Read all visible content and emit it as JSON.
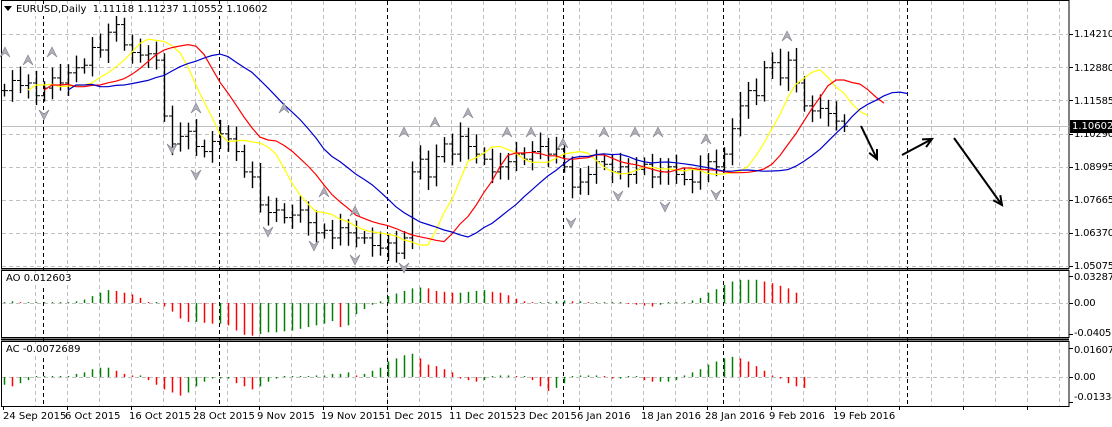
{
  "header": {
    "symbol": "EURUSD,Daily",
    "ohlc": "1.11118 1.11237 1.10552 1.10602",
    "menu_icon": "triangle-down-icon"
  },
  "price_axis": {
    "ticks": [
      "1.14210",
      "1.12880",
      "1.11585",
      "1.10290",
      "1.08995",
      "1.07665",
      "1.06370",
      "1.05075"
    ],
    "current_price": "1.10602"
  },
  "ao": {
    "label": "AO 0.012603",
    "ticks": [
      "0.032871",
      "0.00",
      "-0.0405"
    ]
  },
  "ac": {
    "label": "AC -0.0072689",
    "ticks": [
      "0.016077",
      "0.00",
      "-0.013346"
    ]
  },
  "time_axis": {
    "labels": [
      "24 Sep 2015",
      "6 Oct 2015",
      "16 Oct 2015",
      "28 Oct 2015",
      "9 Nov 2015",
      "19 Nov 2015",
      "1 Dec 2015",
      "11 Dec 2015",
      "23 Dec 2015",
      "6 Jan 2016",
      "18 Jan 2016",
      "28 Jan 2016",
      "9 Feb 2016",
      "19 Feb 2016"
    ]
  },
  "colors": {
    "ma_fast": "#ffff00",
    "ma_mid": "#ff0000",
    "ma_slow": "#0000cc",
    "up_bar": "#008000",
    "down_bar": "#ff0000",
    "grid": "#c0c0c0"
  },
  "chart_data": [
    {
      "type": "ohlc",
      "title": "EURUSD,Daily",
      "ylim": [
        1.05,
        1.151
      ],
      "y_ticks": [
        1.1421,
        1.1288,
        1.11585,
        1.1029,
        1.08995,
        1.07665,
        1.0637,
        1.05075
      ],
      "x_labels": [
        "24 Sep 2015",
        "6 Oct 2015",
        "16 Oct 2015",
        "28 Oct 2015",
        "9 Nov 2015",
        "19 Nov 2015",
        "1 Dec 2015",
        "11 Dec 2015",
        "23 Dec 2015",
        "6 Jan 2016",
        "18 Jan 2016",
        "28 Jan 2016",
        "9 Feb 2016",
        "19 Feb 2016"
      ],
      "last": {
        "open": 1.11118,
        "high": 1.11237,
        "low": 1.10552,
        "close": 1.10602
      },
      "close_series": [
        1.12,
        1.124,
        1.122,
        1.123,
        1.118,
        1.121,
        1.125,
        1.123,
        1.127,
        1.129,
        1.13,
        1.137,
        1.136,
        1.143,
        1.146,
        1.138,
        1.135,
        1.134,
        1.1345,
        1.132,
        1.11,
        1.099,
        1.102,
        1.104,
        1.098,
        1.096,
        1.1,
        1.103,
        1.101,
        1.096,
        1.088,
        1.086,
        1.075,
        1.072,
        1.073,
        1.07,
        1.071,
        1.073,
        1.068,
        1.064,
        1.065,
        1.062,
        1.066,
        1.064,
        1.062,
        1.062,
        1.059,
        1.058,
        1.06,
        1.056,
        1.062,
        1.088,
        1.093,
        1.086,
        1.094,
        1.099,
        1.095,
        1.102,
        1.098,
        1.095,
        1.093,
        1.088,
        1.09,
        1.092,
        1.095,
        1.093,
        1.096,
        1.098,
        1.095,
        1.097,
        1.09,
        1.082,
        1.084,
        1.087,
        1.092,
        1.091,
        1.088,
        1.09,
        1.087,
        1.089,
        1.091,
        1.086,
        1.088,
        1.09,
        1.087,
        1.085,
        1.084,
        1.089,
        1.092,
        1.09,
        1.095,
        1.105,
        1.114,
        1.12,
        1.118,
        1.129,
        1.131,
        1.125,
        1.132,
        1.123,
        1.114,
        1.112,
        1.113,
        1.111,
        1.108,
        1.106
      ],
      "annotations": [
        "down arrow",
        "up arrow",
        "down arrow (projection)"
      ],
      "indicators": [
        "MA fast (yellow)",
        "MA mid (red)",
        "MA slow (blue)",
        "Fractals"
      ]
    },
    {
      "type": "bar",
      "title": "AO 0.012603",
      "ylim": [
        -0.0405,
        0.032871
      ],
      "values": [
        0.001,
        0.002,
        0.001,
        0.001,
        0.001,
        0.001,
        0.001,
        0.001,
        0.001,
        0.002,
        0.004,
        0.008,
        0.012,
        0.015,
        0.014,
        0.012,
        0.01,
        0.006,
        0,
        0,
        -0.004,
        -0.01,
        -0.018,
        -0.022,
        -0.022,
        -0.023,
        -0.024,
        -0.024,
        -0.026,
        -0.032,
        -0.037,
        -0.038,
        -0.036,
        -0.034,
        -0.034,
        -0.033,
        -0.032,
        -0.03,
        -0.028,
        -0.026,
        -0.024,
        -0.021,
        -0.028,
        -0.026,
        -0.013,
        -0.007,
        -0.002,
        0.002,
        0.008,
        0.011,
        0.014,
        0.017,
        0.018,
        0.017,
        0.014,
        0.013,
        0.012,
        0.012,
        0.013,
        0.014,
        0.015,
        0.013,
        0.012,
        0.009,
        0.005,
        0.002,
        0.001,
        0.001,
        0.001,
        0.002,
        0.003,
        0.002,
        0.002,
        0.001,
        0.001,
        0.001,
        0.001,
        0.001,
        -0.001,
        -0.002,
        -0.003,
        -0.004,
        -0.002,
        0.001,
        0.001,
        0.001,
        0.003,
        0.006,
        0.012,
        0.016,
        0.021,
        0.025,
        0.027,
        0.027,
        0.027,
        0.025,
        0.023,
        0.02,
        0.017,
        0.012
      ]
    },
    {
      "type": "bar",
      "title": "AC -0.0072689",
      "ylim": [
        -0.013346,
        0.016077
      ],
      "values": [
        -0.005,
        -0.006,
        -0.004,
        -0.002,
        0,
        0,
        0,
        0,
        0,
        0.002,
        0.003,
        0.005,
        0.006,
        0.006,
        0.004,
        0.002,
        0.001,
        0.001,
        -0.002,
        -0.005,
        -0.008,
        -0.01,
        -0.012,
        -0.01,
        -0.006,
        -0.003,
        -0.001,
        -0.001,
        -0.001,
        -0.004,
        -0.006,
        -0.008,
        -0.006,
        -0.003,
        -0.001,
        0,
        0,
        0,
        0,
        0.001,
        0.001,
        0.002,
        0.002,
        0.003,
        0.001,
        0.002,
        0.004,
        0.006,
        0.01,
        0.012,
        0.014,
        0.015,
        0.012,
        0.008,
        0.007,
        0.005,
        0.003,
        -0.001,
        -0.002,
        -0.003,
        -0.002,
        0,
        0.001,
        0.001,
        0,
        0,
        -0.002,
        -0.006,
        -0.009,
        -0.007,
        -0.004,
        0,
        0.001,
        0.001,
        0.001,
        0,
        -0.001,
        -0.001,
        0,
        0,
        -0.002,
        -0.003,
        -0.003,
        -0.003,
        -0.002,
        0.001,
        0.003,
        0.005,
        0.008,
        0.01,
        0.012,
        0.013,
        0.012,
        0.01,
        0.007,
        0.004,
        0.001,
        -0.001,
        -0.004,
        -0.006,
        -0.007
      ]
    }
  ]
}
